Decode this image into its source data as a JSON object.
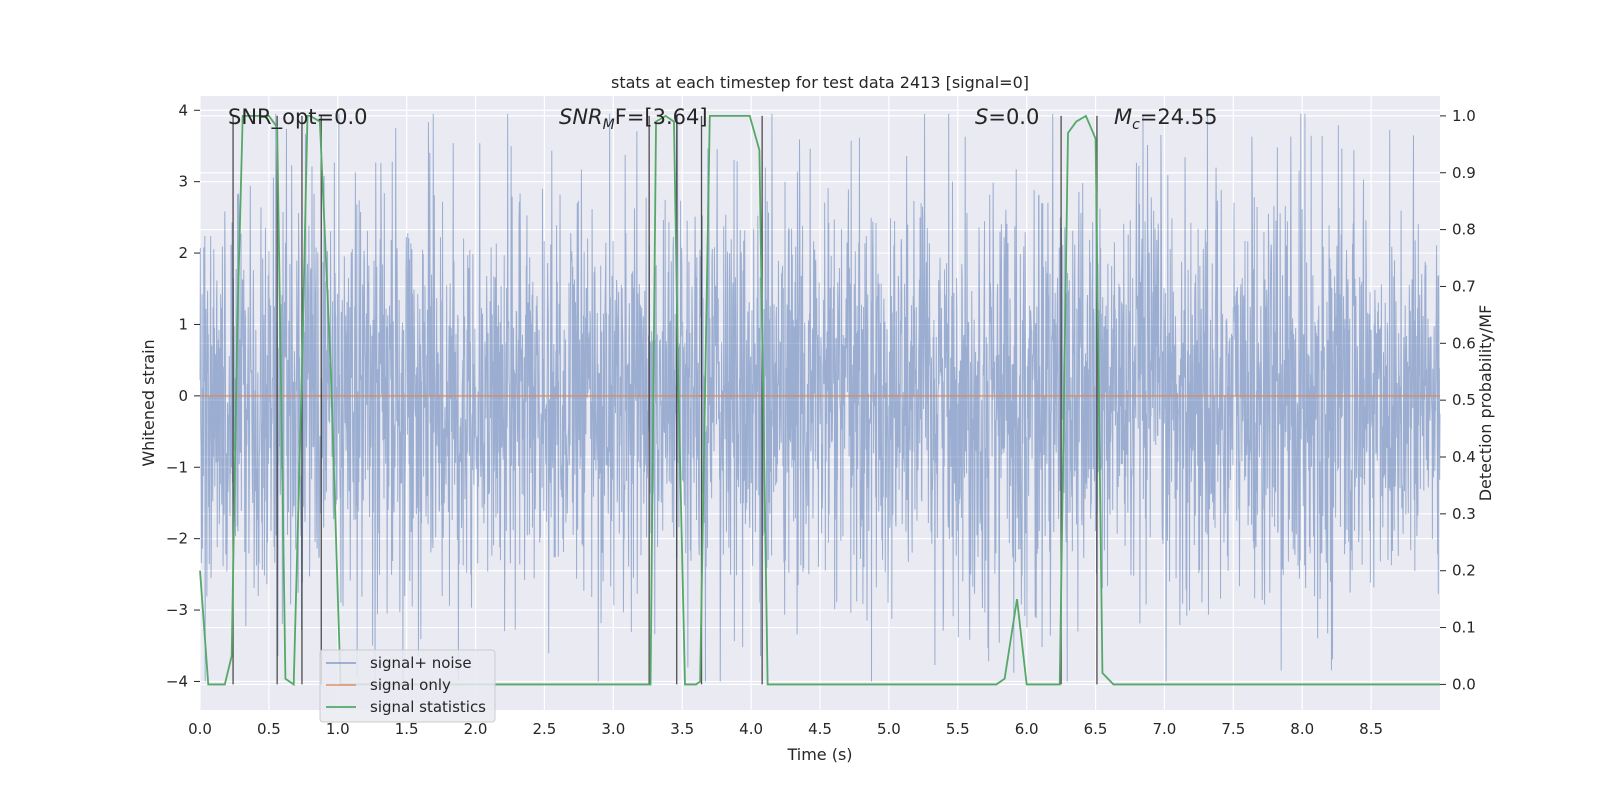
{
  "chart_data": {
    "type": "line",
    "title": "stats at each timestep for test data 2413 [signal=0]",
    "xlabel": "Time (s)",
    "ylabel_left": "Whitened strain",
    "ylabel_right": "Detection probability/MF",
    "xlim": [
      0.0,
      9.0
    ],
    "ylim_left": [
      -4.4,
      4.2
    ],
    "ylim_right": [
      -0.045,
      1.035
    ],
    "xticks": [
      "0.0",
      "0.5",
      "1.0",
      "1.5",
      "2.0",
      "2.5",
      "3.0",
      "3.5",
      "4.0",
      "4.5",
      "5.0",
      "5.5",
      "6.0",
      "6.5",
      "7.0",
      "7.5",
      "8.0",
      "8.5"
    ],
    "yticks_left": [
      "4",
      "3",
      "2",
      "1",
      "0",
      "−1",
      "−2",
      "−3",
      "−4"
    ],
    "yticks_right": [
      "1.0",
      "0.9",
      "0.8",
      "0.7",
      "0.6",
      "0.5",
      "0.4",
      "0.3",
      "0.2",
      "0.1",
      "0.0"
    ],
    "grid": true,
    "legend_position": "lower-left",
    "annotations": {
      "snr_opt": "SNR_opt=0.0",
      "snr_mf_main": "SNR",
      "snr_mf_sub": "M",
      "snr_mf_tail": "F=[3.64]",
      "s_var": "S",
      "s_value": "=0.0",
      "mc_main": "M",
      "mc_sub": "c",
      "mc_value": "=24.55"
    },
    "series": [
      {
        "name": "signal+ noise",
        "color": "#4c72b0",
        "description": "whitened noise, amplitude envelope about ±3, peaks up to about ±4",
        "amplitude_scale": 1.45,
        "seed": 2413
      },
      {
        "name": "signal only",
        "color": "#dd8452",
        "x": [
          0.0,
          9.0
        ],
        "y": [
          0.0,
          0.0
        ]
      },
      {
        "name": "signal statistics",
        "color": "#55a868",
        "axis": "right",
        "x": [
          0.0,
          0.06,
          0.18,
          0.23,
          0.27,
          0.31,
          0.33,
          0.5,
          0.53,
          0.56,
          0.62,
          0.68,
          0.74,
          0.78,
          0.8,
          0.87,
          0.95,
          1.02,
          1.5,
          2.0,
          2.5,
          3.0,
          3.23,
          3.27,
          3.31,
          3.38,
          3.44,
          3.47,
          3.52,
          3.6,
          3.63,
          3.7,
          3.99,
          4.06,
          4.12,
          4.5,
          5.0,
          5.5,
          5.78,
          5.84,
          5.93,
          6.0,
          6.1,
          6.24,
          6.3,
          6.36,
          6.43,
          6.5,
          6.55,
          6.63,
          6.9,
          7.5,
          8.0,
          8.5,
          9.0
        ],
        "y": [
          0.2,
          0.0,
          0.0,
          0.05,
          0.62,
          1.0,
          1.0,
          1.0,
          0.99,
          0.98,
          0.01,
          0.0,
          0.55,
          1.0,
          1.0,
          0.99,
          0.55,
          0.0,
          0.0,
          0.0,
          0.0,
          0.0,
          0.0,
          0.0,
          0.99,
          1.0,
          0.99,
          0.55,
          0.0,
          0.0,
          0.005,
          1.0,
          1.0,
          0.94,
          0.0,
          0.0,
          0.0,
          0.0,
          0.0,
          0.01,
          0.15,
          0.0,
          0.0,
          0.0,
          0.97,
          0.99,
          1.0,
          0.96,
          0.02,
          0.0,
          0.0,
          0.0,
          0.0,
          0.0,
          0.0
        ]
      }
    ],
    "event_markers_x": [
      0.24,
      0.56,
      0.74,
      0.88,
      3.26,
      3.46,
      3.64,
      4.08,
      6.25,
      6.51
    ],
    "event_markers_color": "#333333"
  }
}
